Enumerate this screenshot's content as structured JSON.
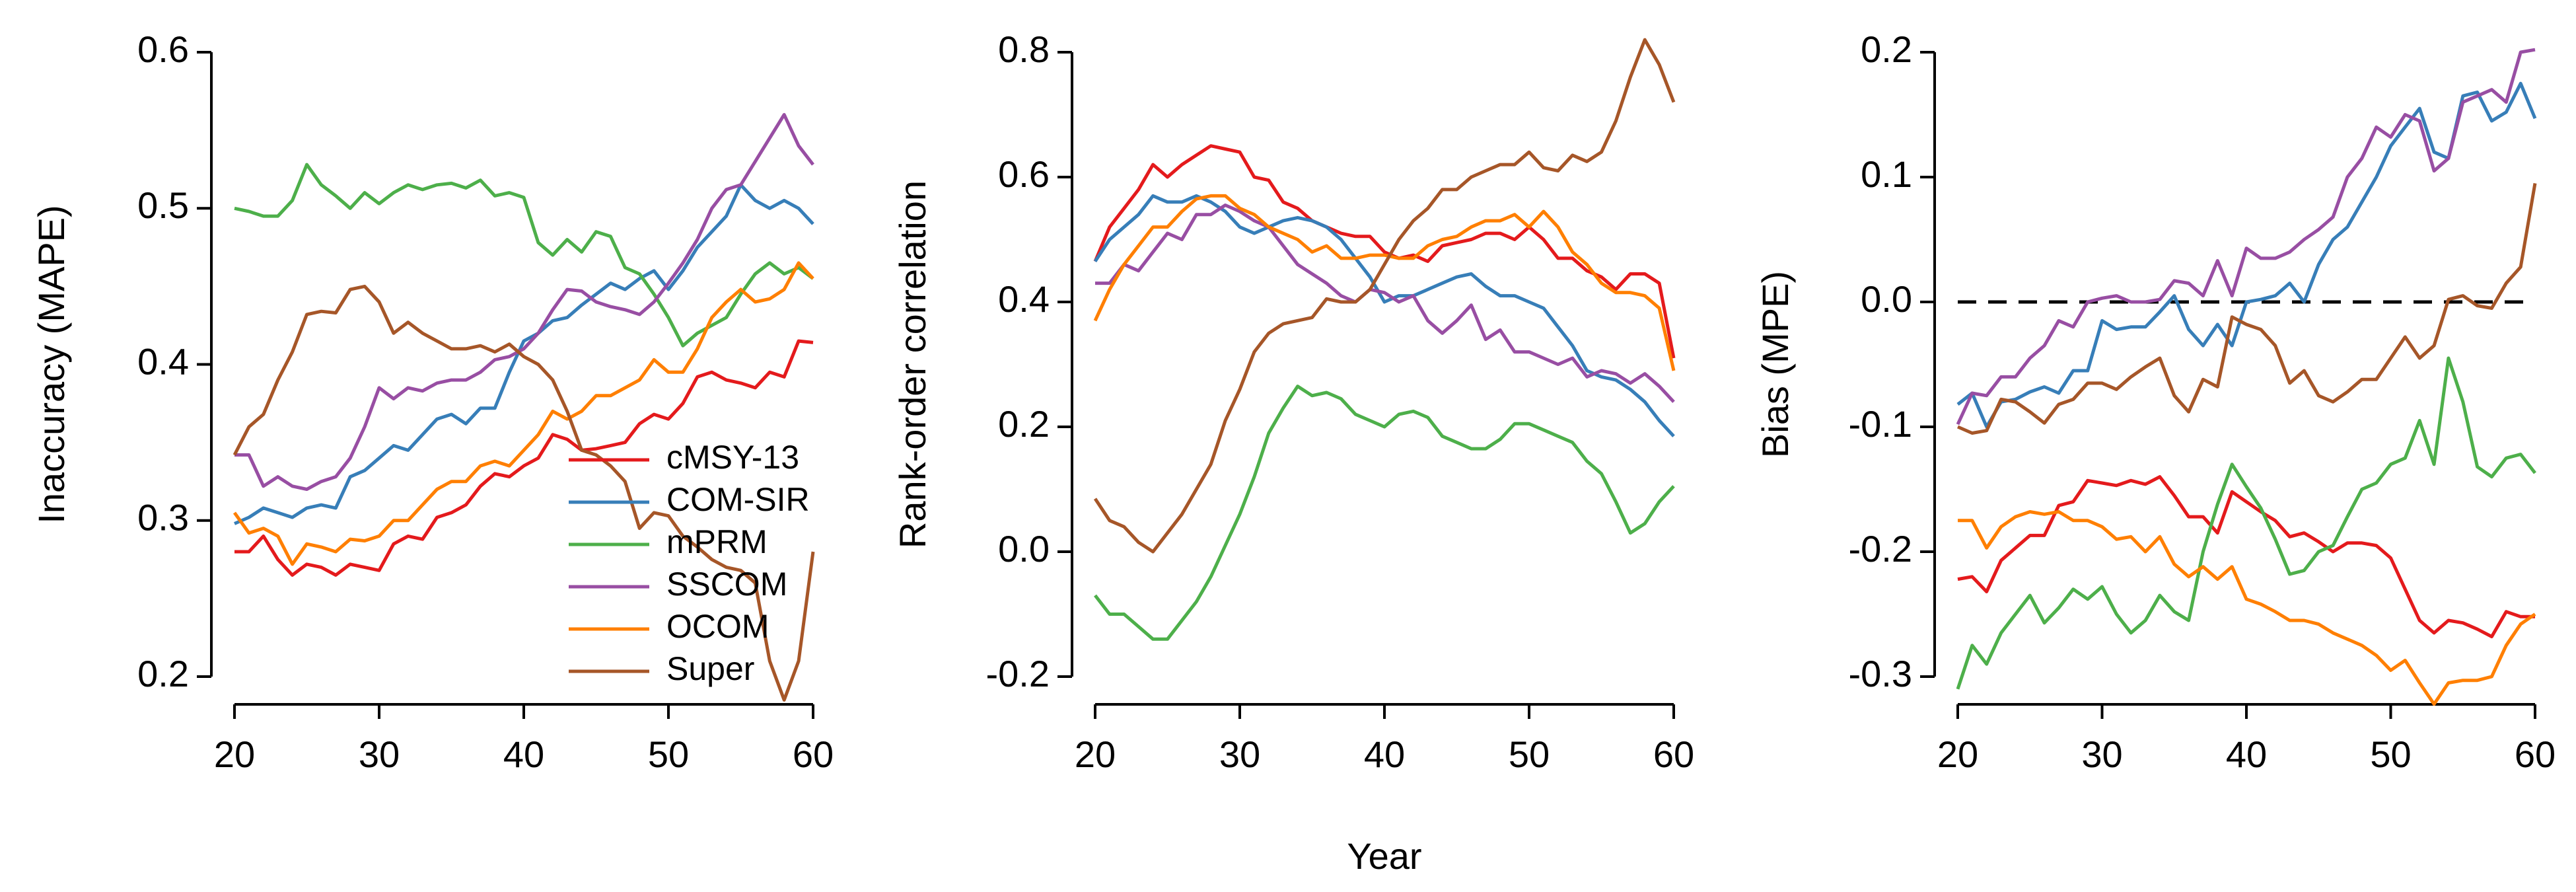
{
  "chart_data": [
    {
      "type": "line",
      "ylabel": "Inaccuracy (MAPE)",
      "x": [
        20,
        21,
        22,
        23,
        24,
        25,
        26,
        27,
        28,
        29,
        30,
        31,
        32,
        33,
        34,
        35,
        36,
        37,
        38,
        39,
        40,
        41,
        42,
        43,
        44,
        45,
        46,
        47,
        48,
        49,
        50,
        51,
        52,
        53,
        54,
        55,
        56,
        57,
        58,
        59,
        60
      ],
      "xlim": [
        20,
        60
      ],
      "xticks": [
        20,
        30,
        40,
        50,
        60
      ],
      "ylim": [
        0.2,
        0.6
      ],
      "yticks": [
        0.2,
        0.3,
        0.4,
        0.5,
        0.6
      ],
      "legend": "lower right",
      "series": [
        {
          "name": "cMSY-13",
          "color": "#e41a1c",
          "values": [
            0.28,
            0.28,
            0.29,
            0.275,
            0.265,
            0.272,
            0.27,
            0.265,
            0.272,
            0.27,
            0.268,
            0.285,
            0.29,
            0.288,
            0.302,
            0.305,
            0.31,
            0.322,
            0.33,
            0.328,
            0.335,
            0.34,
            0.355,
            0.352,
            0.345,
            0.346,
            0.348,
            0.35,
            0.362,
            0.368,
            0.365,
            0.375,
            0.392,
            0.395,
            0.39,
            0.388,
            0.385,
            0.395,
            0.392,
            0.415,
            0.414
          ]
        },
        {
          "name": "COM-SIR",
          "color": "#377eb8",
          "values": [
            0.298,
            0.302,
            0.308,
            0.305,
            0.302,
            0.308,
            0.31,
            0.308,
            0.328,
            0.332,
            0.34,
            0.348,
            0.345,
            0.355,
            0.365,
            0.368,
            0.362,
            0.372,
            0.372,
            0.395,
            0.415,
            0.42,
            0.428,
            0.43,
            0.438,
            0.445,
            0.452,
            0.448,
            0.455,
            0.46,
            0.448,
            0.46,
            0.475,
            0.485,
            0.495,
            0.515,
            0.505,
            0.5,
            0.505,
            0.5,
            0.49
          ]
        },
        {
          "name": "mPRM",
          "color": "#4daf4a",
          "values": [
            0.5,
            0.498,
            0.495,
            0.495,
            0.505,
            0.528,
            0.515,
            0.508,
            0.5,
            0.51,
            0.503,
            0.51,
            0.515,
            0.512,
            0.515,
            0.516,
            0.513,
            0.518,
            0.508,
            0.51,
            0.507,
            0.478,
            0.47,
            0.48,
            0.472,
            0.485,
            0.482,
            0.462,
            0.458,
            0.445,
            0.43,
            0.412,
            0.42,
            0.425,
            0.43,
            0.445,
            0.458,
            0.465,
            0.458,
            0.462,
            0.455
          ]
        },
        {
          "name": "SSCOM",
          "color": "#984ea3",
          "values": [
            0.342,
            0.342,
            0.322,
            0.328,
            0.322,
            0.32,
            0.325,
            0.328,
            0.34,
            0.36,
            0.385,
            0.378,
            0.385,
            0.383,
            0.388,
            0.39,
            0.39,
            0.395,
            0.403,
            0.405,
            0.41,
            0.42,
            0.435,
            0.448,
            0.447,
            0.44,
            0.437,
            0.435,
            0.432,
            0.44,
            0.452,
            0.465,
            0.48,
            0.5,
            0.512,
            0.515,
            0.53,
            0.545,
            0.56,
            0.54,
            0.528
          ]
        },
        {
          "name": "OCOM",
          "color": "#ff7f00",
          "values": [
            0.305,
            0.292,
            0.295,
            0.29,
            0.272,
            0.285,
            0.283,
            0.28,
            0.288,
            0.287,
            0.29,
            0.3,
            0.3,
            0.31,
            0.32,
            0.325,
            0.325,
            0.335,
            0.338,
            0.335,
            0.345,
            0.355,
            0.37,
            0.365,
            0.37,
            0.38,
            0.38,
            0.385,
            0.39,
            0.403,
            0.395,
            0.395,
            0.41,
            0.43,
            0.44,
            0.448,
            0.44,
            0.442,
            0.448,
            0.465,
            0.455
          ]
        },
        {
          "name": "Super",
          "color": "#a65628",
          "values": [
            0.342,
            0.36,
            0.368,
            0.39,
            0.408,
            0.432,
            0.434,
            0.433,
            0.448,
            0.45,
            0.44,
            0.42,
            0.427,
            0.42,
            0.415,
            0.41,
            0.41,
            0.412,
            0.408,
            0.413,
            0.405,
            0.4,
            0.39,
            0.37,
            0.345,
            0.342,
            0.335,
            0.325,
            0.295,
            0.305,
            0.303,
            0.29,
            0.283,
            0.275,
            0.27,
            0.268,
            0.26,
            0.21,
            0.185,
            0.21,
            0.28
          ]
        }
      ]
    },
    {
      "type": "line",
      "ylabel": "Rank-order correlation",
      "xlabel": "Year",
      "x": [
        20,
        21,
        22,
        23,
        24,
        25,
        26,
        27,
        28,
        29,
        30,
        31,
        32,
        33,
        34,
        35,
        36,
        37,
        38,
        39,
        40,
        41,
        42,
        43,
        44,
        45,
        46,
        47,
        48,
        49,
        50,
        51,
        52,
        53,
        54,
        55,
        56,
        57,
        58,
        59,
        60
      ],
      "xlim": [
        20,
        60
      ],
      "xticks": [
        20,
        30,
        40,
        50,
        60
      ],
      "ylim": [
        -0.2,
        0.8
      ],
      "yticks": [
        -0.2,
        {
          "value": 0,
          "label": "0.0"
        },
        0.2,
        0.4,
        0.6,
        0.8
      ],
      "series": [
        {
          "color": "#e41a1c",
          "values": [
            0.465,
            0.52,
            0.55,
            0.58,
            0.62,
            0.6,
            0.62,
            0.635,
            0.65,
            0.645,
            0.64,
            0.6,
            0.595,
            0.56,
            0.55,
            0.53,
            0.52,
            0.51,
            0.505,
            0.505,
            0.48,
            0.47,
            0.475,
            0.465,
            0.49,
            0.495,
            0.5,
            0.51,
            0.51,
            0.5,
            0.52,
            0.5,
            0.47,
            0.47,
            0.45,
            0.44,
            0.42,
            0.445,
            0.445,
            0.43,
            0.31
          ]
        },
        {
          "color": "#377eb8",
          "values": [
            0.465,
            0.5,
            0.52,
            0.54,
            0.57,
            0.56,
            0.56,
            0.57,
            0.56,
            0.545,
            0.52,
            0.51,
            0.52,
            0.53,
            0.535,
            0.53,
            0.52,
            0.5,
            0.47,
            0.44,
            0.4,
            0.41,
            0.41,
            0.42,
            0.43,
            0.44,
            0.445,
            0.425,
            0.41,
            0.41,
            0.4,
            0.39,
            0.36,
            0.33,
            0.29,
            0.28,
            0.275,
            0.26,
            0.24,
            0.21,
            0.185
          ]
        },
        {
          "color": "#4daf4a",
          "values": [
            -0.07,
            -0.1,
            -0.1,
            -0.12,
            -0.14,
            -0.14,
            -0.11,
            -0.08,
            -0.04,
            0.01,
            0.06,
            0.12,
            0.19,
            0.23,
            0.265,
            0.25,
            0.255,
            0.245,
            0.22,
            0.21,
            0.2,
            0.22,
            0.225,
            0.215,
            0.185,
            0.175,
            0.165,
            0.165,
            0.18,
            0.205,
            0.205,
            0.195,
            0.185,
            0.175,
            0.145,
            0.125,
            0.08,
            0.03,
            0.045,
            0.08,
            0.105
          ]
        },
        {
          "color": "#984ea3",
          "values": [
            0.43,
            0.43,
            0.46,
            0.45,
            0.48,
            0.51,
            0.5,
            0.54,
            0.54,
            0.555,
            0.545,
            0.53,
            0.52,
            0.49,
            0.46,
            0.445,
            0.43,
            0.41,
            0.4,
            0.42,
            0.415,
            0.4,
            0.41,
            0.37,
            0.35,
            0.37,
            0.395,
            0.34,
            0.355,
            0.32,
            0.32,
            0.31,
            0.3,
            0.31,
            0.28,
            0.29,
            0.285,
            0.27,
            0.285,
            0.265,
            0.24
          ]
        },
        {
          "color": "#ff7f00",
          "values": [
            0.37,
            0.42,
            0.46,
            0.49,
            0.52,
            0.52,
            0.545,
            0.565,
            0.57,
            0.57,
            0.55,
            0.54,
            0.52,
            0.51,
            0.5,
            0.48,
            0.49,
            0.47,
            0.47,
            0.475,
            0.475,
            0.47,
            0.47,
            0.49,
            0.5,
            0.505,
            0.52,
            0.53,
            0.53,
            0.54,
            0.52,
            0.545,
            0.52,
            0.48,
            0.46,
            0.43,
            0.415,
            0.415,
            0.41,
            0.39,
            0.29
          ]
        },
        {
          "color": "#a65628",
          "values": [
            0.085,
            0.05,
            0.04,
            0.015,
            0.0,
            0.03,
            0.06,
            0.1,
            0.14,
            0.21,
            0.26,
            0.32,
            0.35,
            0.365,
            0.37,
            0.375,
            0.405,
            0.4,
            0.4,
            0.42,
            0.46,
            0.5,
            0.53,
            0.55,
            0.58,
            0.58,
            0.6,
            0.61,
            0.62,
            0.62,
            0.64,
            0.615,
            0.61,
            0.635,
            0.625,
            0.64,
            0.69,
            0.76,
            0.82,
            0.78,
            0.72
          ]
        }
      ]
    },
    {
      "type": "line",
      "ylabel": "Bias (MPE)",
      "x": [
        20,
        21,
        22,
        23,
        24,
        25,
        26,
        27,
        28,
        29,
        30,
        31,
        32,
        33,
        34,
        35,
        36,
        37,
        38,
        39,
        40,
        41,
        42,
        43,
        44,
        45,
        46,
        47,
        48,
        49,
        50,
        51,
        52,
        53,
        54,
        55,
        56,
        57,
        58,
        59,
        60
      ],
      "xlim": [
        20,
        60
      ],
      "xticks": [
        20,
        30,
        40,
        50,
        60
      ],
      "ylim": [
        -0.3,
        0.2
      ],
      "yticks": [
        -0.3,
        -0.2,
        -0.1,
        {
          "value": 0,
          "label": "0.0"
        },
        0.1,
        0.2
      ],
      "reference_line": 0,
      "series": [
        {
          "color": "#e41a1c",
          "values": [
            -0.222,
            -0.22,
            -0.232,
            -0.207,
            -0.197,
            -0.187,
            -0.187,
            -0.163,
            -0.16,
            -0.143,
            -0.145,
            -0.147,
            -0.143,
            -0.146,
            -0.14,
            -0.155,
            -0.172,
            -0.172,
            -0.185,
            -0.152,
            -0.16,
            -0.168,
            -0.175,
            -0.188,
            -0.185,
            -0.192,
            -0.2,
            -0.193,
            -0.193,
            -0.195,
            -0.205,
            -0.23,
            -0.255,
            -0.265,
            -0.255,
            -0.257,
            -0.262,
            -0.268,
            -0.248,
            -0.252,
            -0.252
          ]
        },
        {
          "color": "#377eb8",
          "values": [
            -0.082,
            -0.073,
            -0.1,
            -0.08,
            -0.078,
            -0.072,
            -0.068,
            -0.073,
            -0.055,
            -0.055,
            -0.015,
            -0.022,
            -0.02,
            -0.02,
            -0.008,
            0.005,
            -0.022,
            -0.035,
            -0.018,
            -0.035,
            0.0,
            0.002,
            0.005,
            0.015,
            0.0,
            0.03,
            0.05,
            0.06,
            0.08,
            0.1,
            0.125,
            0.14,
            0.155,
            0.12,
            0.115,
            0.165,
            0.168,
            0.145,
            0.152,
            0.175,
            0.147
          ]
        },
        {
          "color": "#4daf4a",
          "values": [
            -0.31,
            -0.275,
            -0.29,
            -0.265,
            -0.25,
            -0.235,
            -0.257,
            -0.245,
            -0.23,
            -0.238,
            -0.228,
            -0.25,
            -0.265,
            -0.255,
            -0.235,
            -0.248,
            -0.255,
            -0.2,
            -0.162,
            -0.13,
            -0.148,
            -0.165,
            -0.19,
            -0.218,
            -0.215,
            -0.2,
            -0.195,
            -0.172,
            -0.15,
            -0.145,
            -0.13,
            -0.125,
            -0.095,
            -0.13,
            -0.045,
            -0.08,
            -0.132,
            -0.14,
            -0.125,
            -0.122,
            -0.137
          ]
        },
        {
          "color": "#984ea3",
          "values": [
            -0.098,
            -0.073,
            -0.075,
            -0.06,
            -0.06,
            -0.045,
            -0.035,
            -0.015,
            -0.02,
            0.0,
            0.003,
            0.005,
            0.0,
            0.0,
            0.002,
            0.017,
            0.015,
            0.005,
            0.033,
            0.005,
            0.043,
            0.035,
            0.035,
            0.04,
            0.05,
            0.058,
            0.068,
            0.1,
            0.115,
            0.14,
            0.132,
            0.15,
            0.145,
            0.105,
            0.115,
            0.16,
            0.165,
            0.17,
            0.16,
            0.2,
            0.202
          ]
        },
        {
          "color": "#ff7f00",
          "values": [
            -0.175,
            -0.175,
            -0.197,
            -0.18,
            -0.172,
            -0.168,
            -0.17,
            -0.168,
            -0.175,
            -0.175,
            -0.18,
            -0.19,
            -0.188,
            -0.2,
            -0.188,
            -0.21,
            -0.22,
            -0.212,
            -0.222,
            -0.212,
            -0.238,
            -0.242,
            -0.248,
            -0.255,
            -0.255,
            -0.258,
            -0.265,
            -0.27,
            -0.275,
            -0.283,
            -0.295,
            -0.287,
            -0.305,
            -0.322,
            -0.305,
            -0.303,
            -0.303,
            -0.3,
            -0.275,
            -0.258,
            -0.25
          ]
        },
        {
          "color": "#a65628",
          "values": [
            -0.1,
            -0.105,
            -0.103,
            -0.078,
            -0.08,
            -0.088,
            -0.097,
            -0.082,
            -0.078,
            -0.065,
            -0.065,
            -0.07,
            -0.06,
            -0.052,
            -0.045,
            -0.075,
            -0.088,
            -0.062,
            -0.068,
            -0.012,
            -0.018,
            -0.022,
            -0.035,
            -0.065,
            -0.055,
            -0.075,
            -0.08,
            -0.072,
            -0.062,
            -0.062,
            -0.045,
            -0.028,
            -0.045,
            -0.035,
            0.002,
            0.005,
            -0.003,
            -0.005,
            0.015,
            0.028,
            0.095
          ]
        }
      ]
    }
  ]
}
